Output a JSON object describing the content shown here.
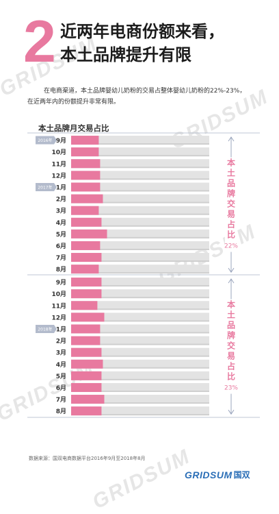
{
  "watermark": "GRIDSUM",
  "header": {
    "number": "2",
    "title_line1": "近两年电商份额来看，",
    "title_line2": "本土品牌提升有限"
  },
  "intro": {
    "line1": "在电商渠道，本土品牌婴幼儿奶粉的交易占整体婴幼儿奶粉的22%-23%，",
    "line2": "在近两年内的份额提升非常有限。"
  },
  "colors": {
    "accent": "#e8799f",
    "bar_track": "#e3e3e3",
    "divider": "#aab4c8",
    "year_badge": "#b3bbcc"
  },
  "chart_data": {
    "type": "bar",
    "orientation": "horizontal",
    "title": "本土品牌月交易占比",
    "xlim": [
      0,
      100
    ],
    "grid": false,
    "legend": "none",
    "periods": [
      {
        "label": "本土品牌交易占比22%",
        "categories": [
          {
            "month": "9月",
            "year": "2016年",
            "value": 20
          },
          {
            "month": "10月",
            "value": 20
          },
          {
            "month": "11月",
            "value": 21
          },
          {
            "month": "12月",
            "value": 21
          },
          {
            "month": "1月",
            "year": "2017年",
            "value": 21
          },
          {
            "month": "2月",
            "value": 23
          },
          {
            "month": "3月",
            "value": 20
          },
          {
            "month": "4月",
            "value": 22
          },
          {
            "month": "5月",
            "value": 26
          },
          {
            "month": "6月",
            "value": 21
          },
          {
            "month": "7月",
            "value": 22
          },
          {
            "month": "8月",
            "value": 20
          }
        ]
      },
      {
        "label": "本土品牌交易占比23%",
        "categories": [
          {
            "month": "9月",
            "value": 22
          },
          {
            "month": "10月",
            "value": 22
          },
          {
            "month": "11月",
            "value": 19
          },
          {
            "month": "12月",
            "value": 24
          },
          {
            "month": "1月",
            "year": "2018年",
            "value": 21
          },
          {
            "month": "2月",
            "value": 21
          },
          {
            "month": "3月",
            "value": 22
          },
          {
            "month": "4月",
            "value": 23
          },
          {
            "month": "5月",
            "value": 22
          },
          {
            "month": "6月",
            "value": 22
          },
          {
            "month": "7月",
            "value": 24
          },
          {
            "month": "8月",
            "value": 22
          }
        ]
      }
    ]
  },
  "footer": {
    "source": "数据来源：国双电商数据平台2016年9月至2018年8月",
    "logo_text": "GRIDSUM",
    "logo_cn": "国双"
  }
}
